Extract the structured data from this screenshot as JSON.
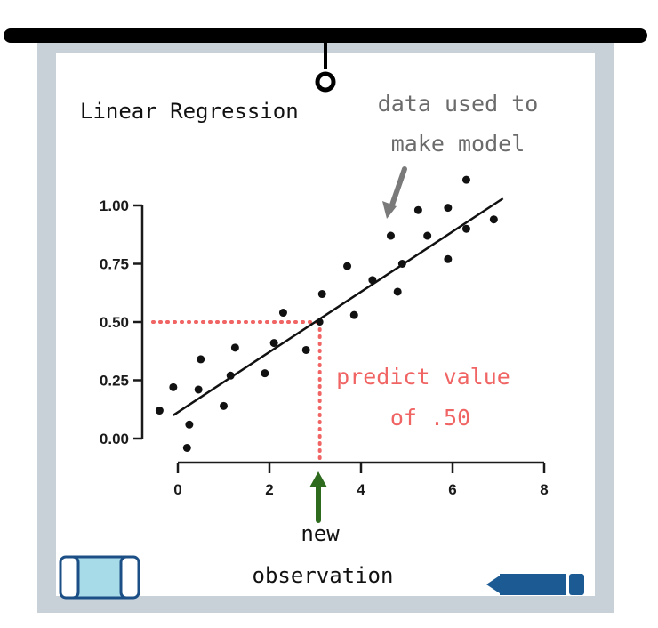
{
  "title": "Linear Regression",
  "annotation_data": [
    "data used to",
    "make model"
  ],
  "annotation_predict": [
    "predict value",
    "of .50"
  ],
  "annotation_new": [
    "new",
    "observation"
  ],
  "colors": {
    "board_frame": "#c8d0d8",
    "board_surface": "#ffffff",
    "rail": "#000000",
    "annotation_gray": "#6b6b6b",
    "predict_red": "#f06464",
    "new_arrow_green": "#2f6b1f",
    "eraser_fill": "#a8dbe8",
    "eraser_outline": "#1c4f86",
    "marker_blue": "#1c5a94"
  },
  "icons": [
    "hanger-hook-icon",
    "eraser-icon",
    "marker-icon",
    "arrow-down-icon",
    "arrow-up-icon"
  ],
  "chart_data": {
    "type": "scatter",
    "title": "",
    "xlabel": "",
    "ylabel": "",
    "xlim": [
      0,
      8
    ],
    "ylim": [
      0,
      1
    ],
    "x_ticks": [
      0,
      2,
      4,
      6,
      8
    ],
    "y_ticks": [
      0.0,
      0.25,
      0.5,
      0.75,
      1.0
    ],
    "x_tick_labels": [
      "0",
      "2",
      "4",
      "6",
      "8"
    ],
    "y_tick_labels": [
      "0.00",
      "0.25",
      "0.50",
      "0.75",
      "1.00"
    ],
    "grid": false,
    "points": [
      {
        "x": -0.4,
        "y": 0.12
      },
      {
        "x": -0.1,
        "y": 0.22
      },
      {
        "x": 0.2,
        "y": -0.04
      },
      {
        "x": 0.25,
        "y": 0.06
      },
      {
        "x": 0.45,
        "y": 0.21
      },
      {
        "x": 0.5,
        "y": 0.34
      },
      {
        "x": 1.0,
        "y": 0.14
      },
      {
        "x": 1.15,
        "y": 0.27
      },
      {
        "x": 1.25,
        "y": 0.39
      },
      {
        "x": 1.9,
        "y": 0.28
      },
      {
        "x": 2.1,
        "y": 0.41
      },
      {
        "x": 2.3,
        "y": 0.54
      },
      {
        "x": 2.8,
        "y": 0.38
      },
      {
        "x": 3.15,
        "y": 0.62
      },
      {
        "x": 3.7,
        "y": 0.74
      },
      {
        "x": 3.85,
        "y": 0.53
      },
      {
        "x": 4.25,
        "y": 0.68
      },
      {
        "x": 4.65,
        "y": 0.87
      },
      {
        "x": 4.8,
        "y": 0.63
      },
      {
        "x": 4.9,
        "y": 0.75
      },
      {
        "x": 5.25,
        "y": 0.98
      },
      {
        "x": 5.45,
        "y": 0.87
      },
      {
        "x": 5.9,
        "y": 0.77
      },
      {
        "x": 5.9,
        "y": 0.99
      },
      {
        "x": 6.3,
        "y": 1.11
      },
      {
        "x": 6.3,
        "y": 0.9
      },
      {
        "x": 6.9,
        "y": 0.94
      }
    ],
    "regression_line": {
      "x": [
        -0.1,
        7.1
      ],
      "y": [
        0.1,
        1.03
      ]
    },
    "prediction": {
      "x": 3.1,
      "y": 0.5
    }
  }
}
